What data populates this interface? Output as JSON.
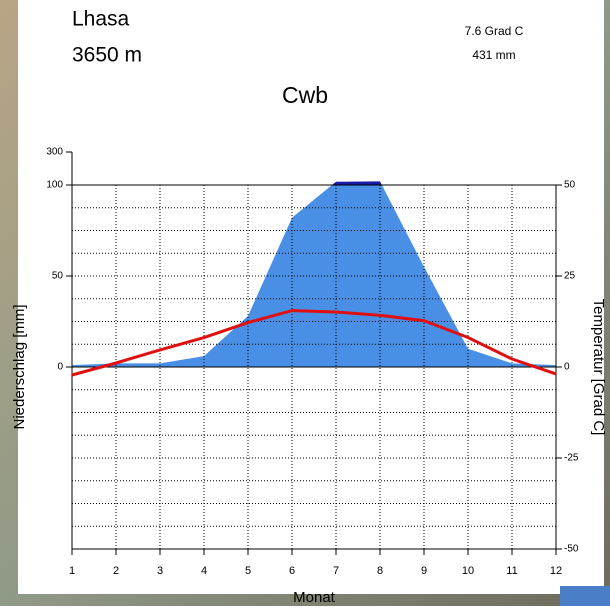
{
  "chart_data": {
    "type": "climate",
    "station": "Lhasa",
    "elevation": "3650  m",
    "mean_temperature": "7.6 Grad C",
    "annual_precipitation": "431 mm",
    "title": "Cwb",
    "xlabel": "Monat",
    "ylabel": "Niederschlag [mm]",
    "y2label": "Temperatur [Grad C]",
    "x": [
      1,
      2,
      3,
      4,
      5,
      6,
      7,
      8,
      9,
      10,
      11,
      12
    ],
    "xlim": [
      1,
      12
    ],
    "xticks": [
      1,
      2,
      3,
      4,
      5,
      6,
      7,
      8,
      9,
      10,
      11,
      12
    ],
    "ylim": [
      -100,
      100
    ],
    "yticks": [
      0,
      50,
      100
    ],
    "ylim_upper": [
      100,
      300
    ],
    "yticks_upper": [
      300
    ],
    "y2lim": [
      -50,
      50
    ],
    "y2ticks": [
      -50,
      -25,
      0,
      25,
      50
    ],
    "y2minor": [
      -43.75,
      -37.5,
      -31.25,
      -18.75,
      -12.5,
      -6.25,
      6.25,
      12.5,
      18.75,
      31.25,
      37.5,
      43.75
    ],
    "grid": true,
    "series": [
      {
        "name": "Niederschlag",
        "color": "#4a8fe6",
        "upper_color": "#1a1aa8",
        "values": [
          1,
          2,
          2,
          6,
          28,
          82,
          120,
          122,
          55,
          10,
          2,
          1
        ]
      },
      {
        "name": "Temperatur",
        "color": "#e01010",
        "axis": "y2",
        "values": [
          -2.2,
          1.1,
          4.7,
          8.1,
          12.2,
          15.5,
          15.1,
          14.2,
          12.7,
          8.1,
          2.2,
          -1.9
        ]
      }
    ]
  }
}
